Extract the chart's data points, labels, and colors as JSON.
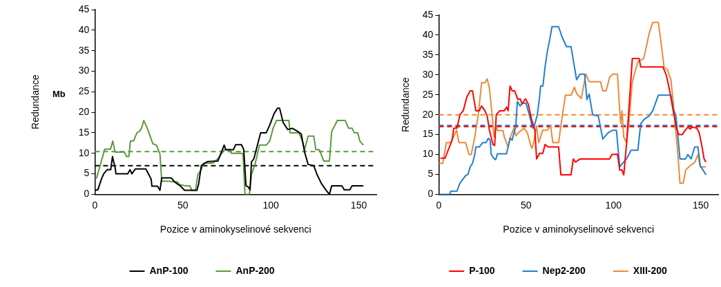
{
  "chart_data": [
    {
      "type": "line",
      "xlabel": "Pozice v aminokyselinové sekvenci",
      "ylabel": "Redundance",
      "annotations": [
        "Mb"
      ],
      "xlim": [
        0,
        160
      ],
      "xticks": [
        0,
        50,
        100,
        150
      ],
      "ylim": [
        0,
        45
      ],
      "yticks": [
        0,
        5,
        10,
        15,
        20,
        25,
        30,
        35,
        40,
        45
      ],
      "grid": false,
      "legend": "bottom",
      "marker": "none",
      "line_style": "solid",
      "series": [
        {
          "name": "AnP-100",
          "color": "#000000",
          "x": [
            0,
            1.7,
            3.7,
            5,
            7,
            9,
            10,
            11.5,
            12,
            18.7,
            20,
            21,
            23,
            29,
            32,
            32.4,
            35.6,
            37,
            38,
            43.5,
            45.4,
            48.7,
            51,
            58,
            59,
            60.5,
            64,
            69.9,
            73.5,
            74.4,
            78.8,
            80,
            83.3,
            84.6,
            85.9,
            87.2,
            88.2,
            89,
            90.4,
            94.2,
            97.4,
            99.4,
            101.9,
            103.8,
            105,
            107,
            109.6,
            112.2,
            115.4,
            117.3,
            119.2,
            121.2,
            124.4,
            126.3,
            128.8,
            131.4,
            133.3,
            134.6,
            140.4,
            141.7,
            144.9,
            146.2,
            152.6
          ],
          "values": [
            1,
            1.1,
            3.7,
            5,
            6,
            6,
            9.2,
            6.5,
            5,
            5,
            6,
            5,
            6.2,
            6.2,
            3.7,
            2,
            2,
            1,
            4,
            4,
            3,
            2,
            1,
            1,
            2.6,
            7,
            8,
            8.1,
            12,
            10.9,
            10.9,
            12.1,
            12.1,
            10.9,
            2.1,
            1.8,
            1.1,
            7.9,
            8.7,
            15,
            15,
            16.9,
            19.7,
            21,
            21,
            17.5,
            15.8,
            16.1,
            15.3,
            14.7,
            10.3,
            7.3,
            7,
            4.8,
            2.6,
            1,
            0,
            2.1,
            2.1,
            1.1,
            1.1,
            2.1,
            2.1
          ]
        },
        {
          "name": "AnP-200",
          "color": "#5b9a3c",
          "x": [
            0,
            1,
            5.6,
            8.9,
            10.2,
            11.5,
            16.7,
            18,
            19.3,
            20.2,
            22,
            23.9,
            25.2,
            26.5,
            27.8,
            29.8,
            33,
            35,
            37,
            38,
            42.2,
            44,
            46.7,
            48,
            51.3,
            54,
            55,
            57.2,
            58.5,
            60.4,
            61.8,
            67,
            69.9,
            73.7,
            76.3,
            77.6,
            83.3,
            84.2,
            85.3,
            87.8,
            89,
            91,
            93.6,
            97.4,
            99.4,
            101.3,
            103.2,
            110.3,
            110.9,
            116,
            117.9,
            119.2,
            121.2,
            124.4,
            125.6,
            127.6,
            130.1,
            133.3,
            134.6,
            137.8,
            142.3,
            144.2,
            146.2,
            147.4,
            149.4,
            150.6,
            152.6
          ],
          "values": [
            4,
            4,
            11,
            11,
            13,
            10.3,
            10.3,
            9.2,
            9.2,
            13,
            13,
            15,
            15.3,
            16.1,
            18,
            16.1,
            12.3,
            12,
            9.8,
            3.2,
            3.2,
            3.1,
            3.1,
            2.4,
            2.1,
            2.1,
            1,
            1,
            4.8,
            5.9,
            7.6,
            7.6,
            8.7,
            10.9,
            10.9,
            10,
            10,
            9.8,
            0,
            0,
            4.8,
            7.3,
            12,
            12,
            13,
            16.1,
            18,
            18,
            15,
            15,
            13,
            10.9,
            14.2,
            14.2,
            10.9,
            10.9,
            8.1,
            8.1,
            15.3,
            18,
            18,
            16.1,
            16.1,
            15,
            15,
            13,
            12
          ]
        }
      ],
      "ref_lines": [
        {
          "axis": "y",
          "value": 10.4,
          "color": "#5b9a3c",
          "line_style": "dashed"
        },
        {
          "axis": "y",
          "value": 7,
          "color": "#000000",
          "line_style": "dashed"
        }
      ]
    },
    {
      "type": "line",
      "xlabel": "Pozice v aminokyselinové sekvenci",
      "ylabel": "Redundance",
      "xlim": [
        0,
        160
      ],
      "xticks": [
        0,
        50,
        100,
        150
      ],
      "ylim": [
        0,
        45
      ],
      "yticks": [
        0,
        5,
        10,
        15,
        20,
        25,
        30,
        35,
        40,
        45
      ],
      "grid": false,
      "legend": "bottom",
      "marker": "none",
      "line_style": "solid",
      "series": [
        {
          "name": "P-100",
          "color": "#ff0000",
          "x": [
            1,
            3.6,
            7.6,
            8.6,
            10.4,
            12.1,
            14,
            16,
            18,
            19.3,
            21.2,
            23.2,
            24.5,
            26.4,
            27.7,
            29,
            31,
            32,
            32.9,
            34.9,
            37.5,
            38.8,
            39.7,
            40.8,
            42,
            43.4,
            45.3,
            46.6,
            47.7,
            49.6,
            51.2,
            53.1,
            55,
            56,
            57.7,
            59.6,
            60.8,
            62.7,
            68.6,
            69.9,
            75.7,
            77,
            78.3,
            80.9,
            97.8,
            99.1,
            102.3,
            103.6,
            104.9,
            105.9,
            107.5,
            110.8,
            114.7,
            115.6,
            128.3,
            130.3,
            132.2,
            134.2,
            136.1,
            137.4,
            139.4,
            140.6,
            142.6,
            143.9,
            145.2,
            147.8,
            149.1,
            150.6,
            151.9,
            153
          ],
          "values": [
            9.1,
            9.1,
            13.6,
            16.6,
            16.6,
            20,
            21,
            24.4,
            26,
            26,
            21,
            21,
            22.2,
            21,
            19.7,
            16.1,
            12.5,
            12.3,
            20,
            21,
            21,
            21.9,
            21,
            27.2,
            26,
            26,
            23.8,
            24,
            22.7,
            24,
            22.7,
            18.8,
            16.1,
            8.9,
            10.3,
            10.3,
            12.5,
            11.9,
            11.9,
            4.9,
            4.9,
            8.9,
            8.1,
            8.9,
            8.9,
            10,
            10.1,
            6.1,
            6.1,
            4.9,
            12.7,
            34.1,
            34.1,
            32,
            32,
            29.9,
            26,
            21,
            16.6,
            15,
            15,
            15.8,
            16.9,
            16.4,
            16.9,
            16.6,
            15.5,
            12.2,
            8.9,
            8.1
          ]
        },
        {
          "name": "Nep2-200",
          "color": "#1f7fd0",
          "x": [
            0,
            6.2,
            6.9,
            10.4,
            12.1,
            15.4,
            16.7,
            18,
            19.3,
            20.6,
            21.2,
            23.2,
            25.1,
            27,
            28.4,
            29.4,
            30,
            31.6,
            32.6,
            33.6,
            38.8,
            40.8,
            42,
            43.4,
            44,
            45,
            46.6,
            47.9,
            49.9,
            51.8,
            53.8,
            55,
            56.4,
            57.7,
            58.3,
            59.6,
            60.9,
            62.2,
            63.5,
            64.8,
            68.6,
            70.5,
            73.1,
            75.7,
            78.9,
            80.9,
            83.5,
            84.8,
            86.1,
            88.1,
            91.3,
            93.9,
            97.1,
            99.7,
            101.7,
            103.6,
            105.6,
            107.5,
            110.1,
            114,
            115.6,
            117.5,
            120.5,
            122.5,
            125.7,
            132.9,
            134.2,
            135.8,
            138.1,
            141.3,
            142.6,
            144.5,
            146.5,
            148.4,
            149.7,
            153
          ],
          "values": [
            0,
            0,
            0.8,
            0.8,
            2.8,
            4.7,
            5,
            6.9,
            7.8,
            10,
            11.9,
            11.9,
            13,
            13,
            14.1,
            13.6,
            10,
            9,
            8.7,
            10.2,
            10.2,
            14.1,
            13.6,
            16.1,
            16.7,
            23.3,
            22.2,
            22.9,
            22.9,
            20,
            16.6,
            17.7,
            20,
            24.4,
            27.2,
            27.2,
            32.2,
            36,
            38.8,
            42.1,
            42.1,
            39.6,
            37.1,
            37.1,
            28.8,
            30.2,
            30.2,
            23.8,
            25.2,
            20,
            19.7,
            13.9,
            15.5,
            16.1,
            16.1,
            6.9,
            8,
            8.9,
            11.1,
            11.1,
            17.7,
            18.8,
            19.7,
            21,
            24.9,
            24.9,
            21.6,
            19.7,
            8.9,
            8.9,
            10,
            8.9,
            11.9,
            11.9,
            7.2,
            4.9
          ]
        },
        {
          "name": "XIII-200",
          "color": "#ed8936",
          "x": [
            0,
            2.3,
            4.3,
            6.9,
            10.2,
            11.5,
            15.4,
            17.3,
            18.6,
            20.6,
            22.6,
            24.5,
            26.4,
            27.7,
            29,
            30.3,
            31.6,
            32.7,
            33.6,
            36.8,
            37.5,
            39.7,
            41,
            43,
            44.2,
            45.5,
            48.8,
            50.7,
            52.7,
            53.3,
            54.5,
            55.9,
            57.2,
            59.5,
            62.1,
            64,
            65.3,
            68.6,
            69.9,
            72.5,
            75.7,
            77.7,
            79,
            81.6,
            84.2,
            86.1,
            92.6,
            93.9,
            95.8,
            97.8,
            99.7,
            102.3,
            103.6,
            104.2,
            104.9,
            105.9,
            107.5,
            108.8,
            110.8,
            114,
            117.3,
            118.6,
            120.5,
            122.5,
            125.7,
            127,
            129,
            130.9,
            132.9,
            134.2,
            135.5,
            136.8,
            138.1,
            140,
            141.3,
            143.9,
            146.5,
            148.4,
            149.7,
            153
          ],
          "values": [
            7.8,
            7.8,
            13,
            13,
            16.1,
            13,
            13,
            10,
            10,
            14.4,
            20,
            28,
            28,
            29,
            26.6,
            21,
            14.4,
            17.2,
            16,
            16,
            14.4,
            11.9,
            14.4,
            16.6,
            14.7,
            15.5,
            16.6,
            15.5,
            12.2,
            11.6,
            13.3,
            17.2,
            13,
            16.1,
            16.1,
            17.2,
            13,
            13,
            17.2,
            24.9,
            24.9,
            26.9,
            25.2,
            24.1,
            30.2,
            28.3,
            28.3,
            26,
            26,
            29.4,
            30.2,
            30.2,
            21,
            17.7,
            21,
            14.4,
            13,
            17.7,
            28.3,
            33.3,
            34.1,
            36.6,
            40.5,
            43.2,
            43.2,
            39,
            31.9,
            31.3,
            28.8,
            23.3,
            16.6,
            10.5,
            2.8,
            2.8,
            6.1,
            7.2,
            8,
            10,
            6.9,
            6.9
          ]
        }
      ],
      "ref_lines": [
        {
          "axis": "y",
          "value": 20,
          "color": "#ed8936",
          "line_style": "dashed"
        },
        {
          "axis": "y",
          "value": 17.3,
          "color": "#1f7fd0",
          "line_style": "dashed"
        },
        {
          "axis": "y",
          "value": 17,
          "color": "#ff0000",
          "line_style": "dashed"
        }
      ]
    }
  ]
}
